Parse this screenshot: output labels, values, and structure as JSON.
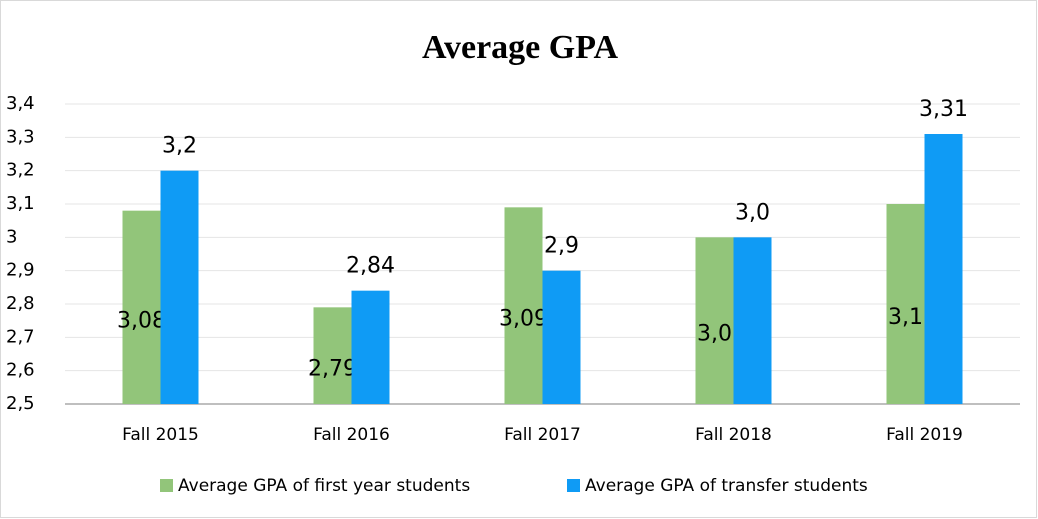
{
  "chart_data": {
    "type": "bar",
    "title": "Average GPA",
    "categories": [
      "Fall 2015",
      "Fall 2016",
      "Fall 2017",
      "Fall 2018",
      "Fall 2019"
    ],
    "series": [
      {
        "name": "Average GPA of first year students",
        "color": "#92c57a",
        "values": [
          3.08,
          2.79,
          3.09,
          3.0,
          3.1
        ],
        "value_labels": [
          "3,08",
          "2,79",
          "3,09",
          "3,0",
          "3,1"
        ]
      },
      {
        "name": "Average GPA of transfer students",
        "color": "#0f9bf5",
        "values": [
          3.2,
          2.84,
          2.9,
          3.0,
          3.31
        ],
        "value_labels": [
          "3,2",
          "2,84",
          "2,9",
          "3,0",
          "3,31"
        ]
      }
    ],
    "ylim": [
      2.5,
      3.4
    ],
    "yticks": [
      {
        "value": 2.5,
        "label": "2,5"
      },
      {
        "value": 2.6,
        "label": "2,6"
      },
      {
        "value": 2.7,
        "label": "2,7"
      },
      {
        "value": 2.8,
        "label": "2,8"
      },
      {
        "value": 2.9,
        "label": "2,9"
      },
      3,
      {
        "value": 3.1,
        "label": "3,1"
      },
      {
        "value": 3.2,
        "label": "3,2"
      },
      {
        "value": 3.3,
        "label": "3,3"
      },
      {
        "value": 3.4,
        "label": "3,4"
      }
    ],
    "grid": true,
    "legend": "bottom"
  }
}
